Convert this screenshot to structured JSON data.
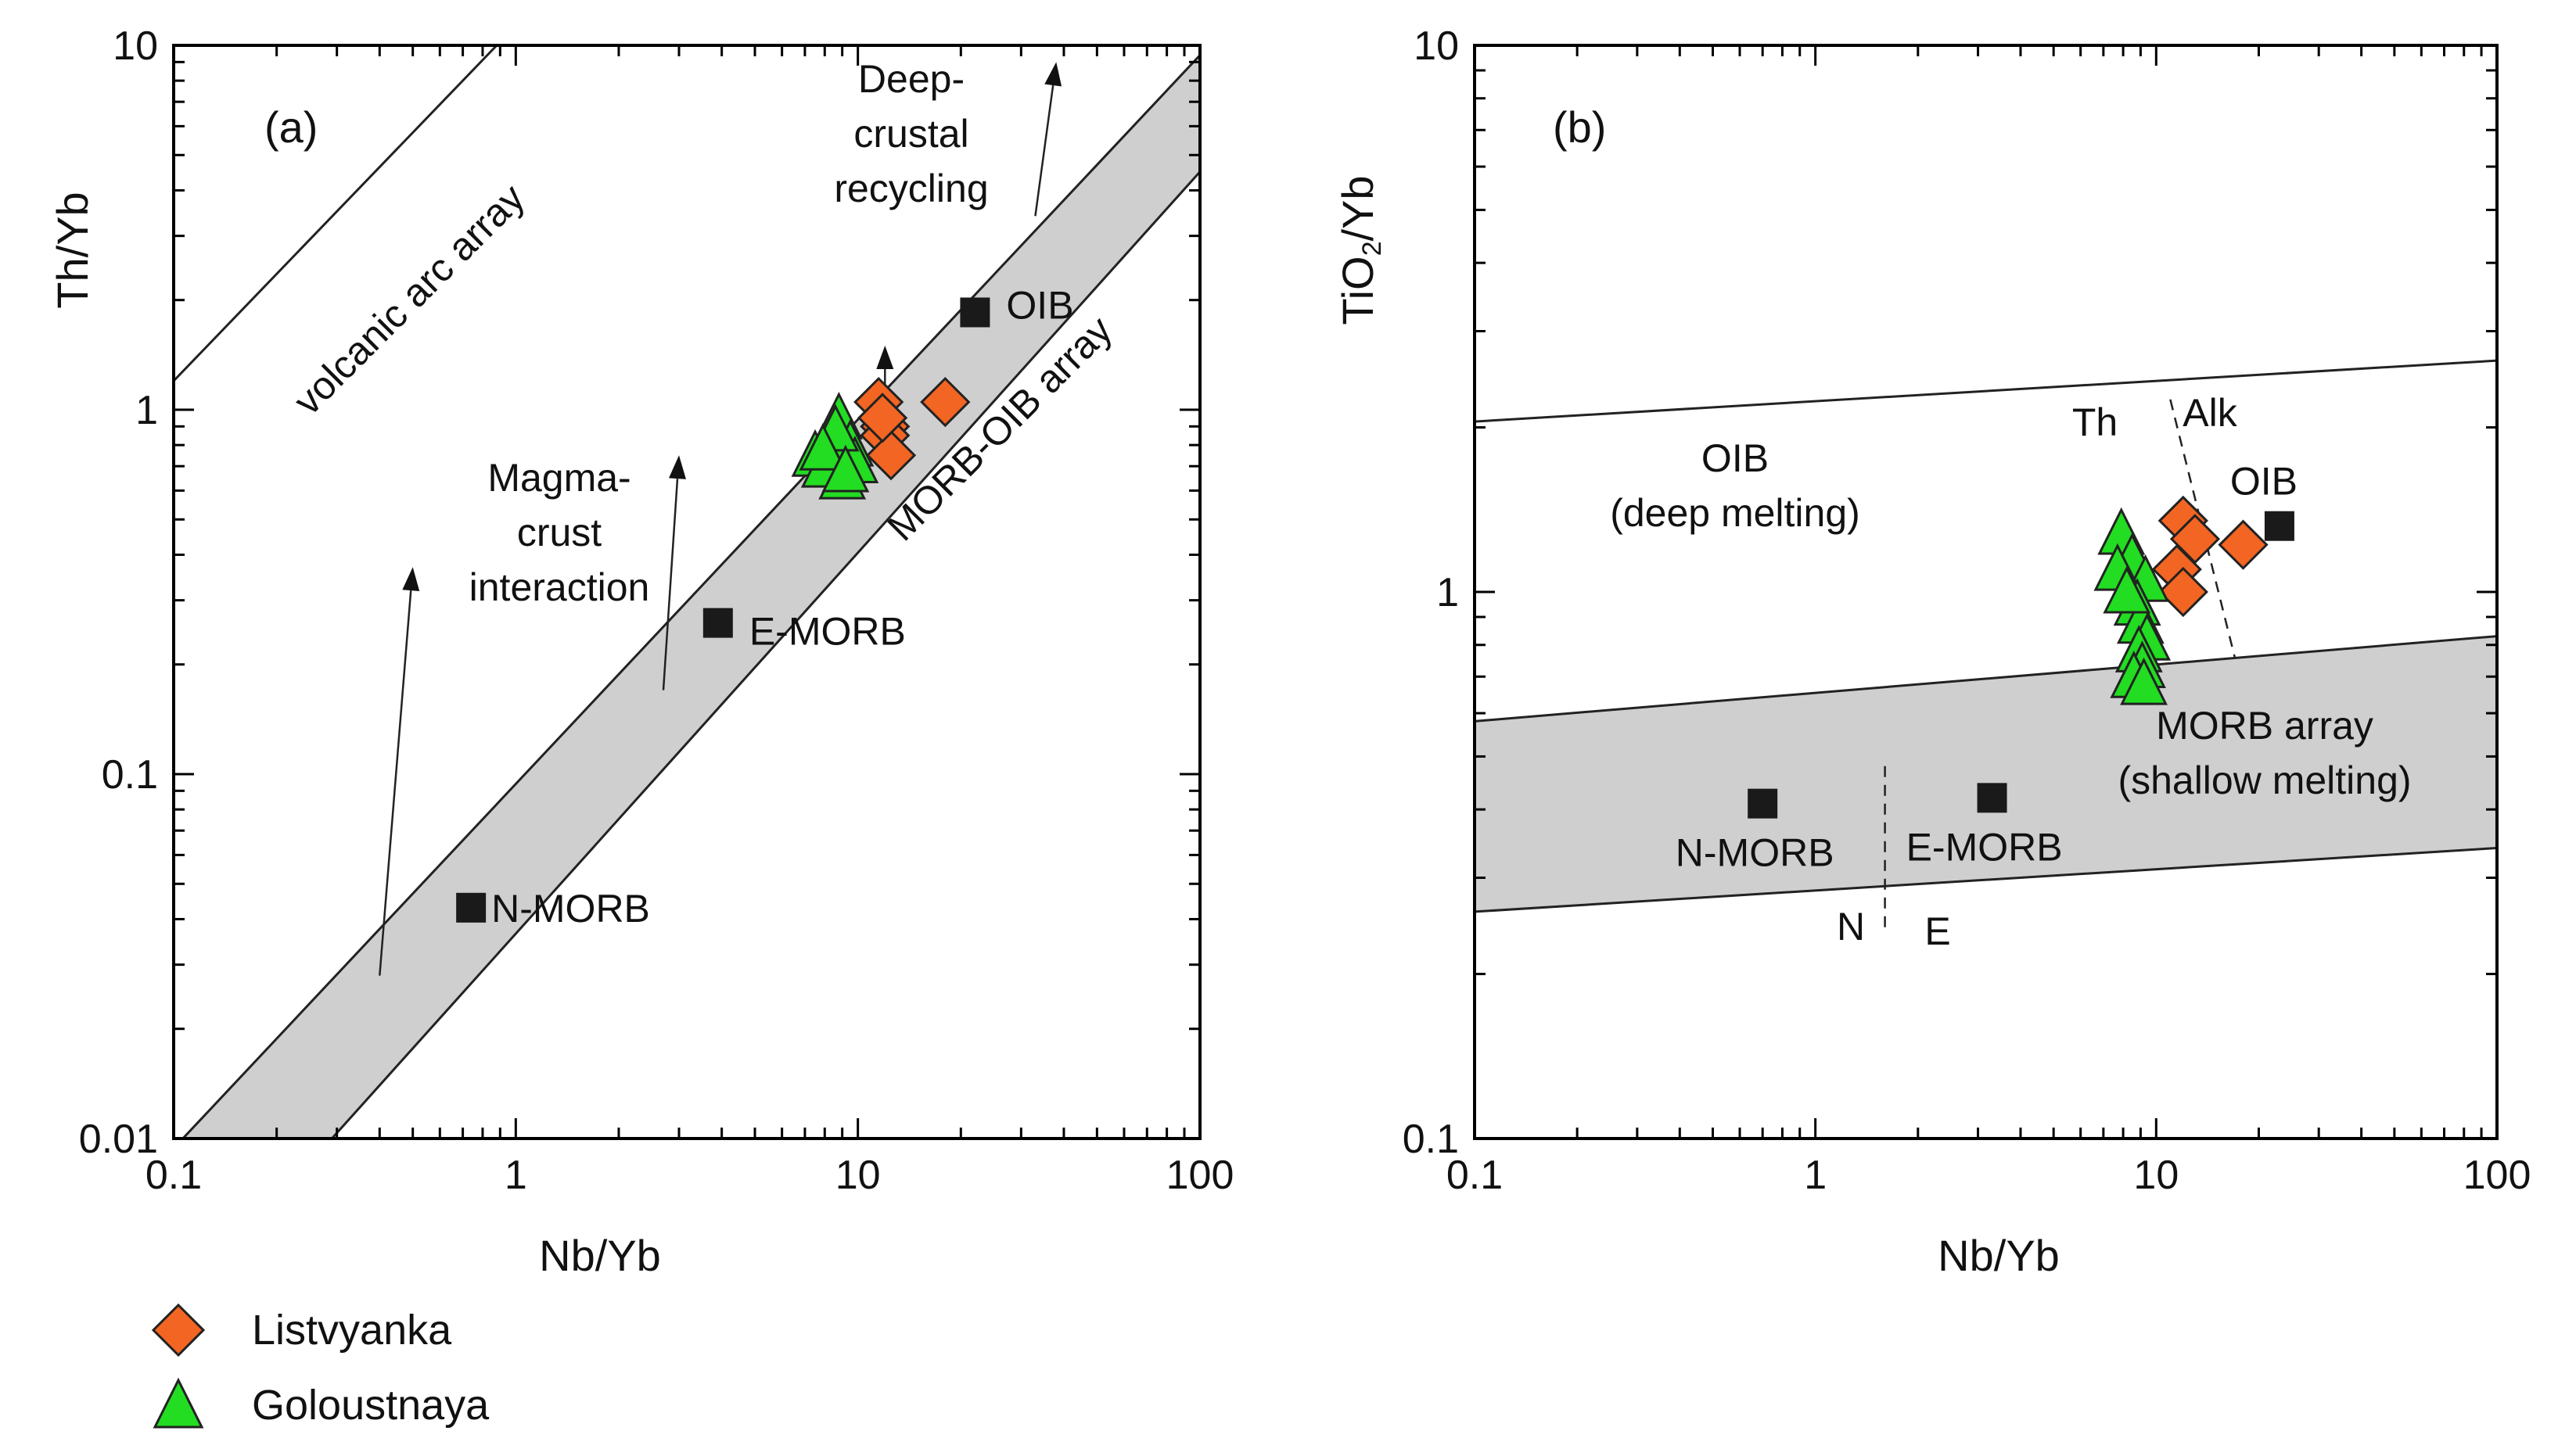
{
  "figure": {
    "legend": [
      {
        "label": "Listvyanka",
        "marker": "diamond",
        "color": "#F26522"
      },
      {
        "label": "Goloustnaya",
        "marker": "triangle",
        "color": "#22DD22"
      }
    ]
  },
  "colors": {
    "listvyanka": "#F26522",
    "goloustnaya": "#22DD22",
    "reference": "#1a1a1a",
    "array_fill": "#cfcfcf",
    "axis": "#000000"
  },
  "chart_data": [
    {
      "type": "scatter",
      "panel_label": "(a)",
      "xlabel": "Nb/Yb",
      "ylabel": "Th/Yb",
      "xscale": "log",
      "yscale": "log",
      "xlim": [
        0.1,
        100
      ],
      "ylim": [
        0.01,
        10
      ],
      "xticks": [
        0.1,
        1,
        10,
        100
      ],
      "xtick_labels": [
        "0.1",
        "1",
        "10",
        "100"
      ],
      "yticks": [
        0.01,
        0.1,
        1,
        10
      ],
      "ytick_labels": [
        "0.01",
        "0.1",
        "1",
        "10"
      ],
      "band": {
        "label": "MORB-OIB array",
        "upper_line": [
          [
            0.1,
            0.0094
          ],
          [
            100,
            9.4
          ]
        ],
        "lower_line": [
          [
            0.29,
            0.01
          ],
          [
            100,
            4.5
          ]
        ]
      },
      "volcanic_arc_line": {
        "label": "volcanic arc array",
        "points": [
          [
            0.1,
            1.2
          ],
          [
            0.88,
            10
          ]
        ]
      },
      "reference_points": [
        {
          "name": "N-MORB",
          "x": 0.74,
          "y": 0.043
        },
        {
          "name": "E-MORB",
          "x": 3.9,
          "y": 0.26
        },
        {
          "name": "OIB",
          "x": 22,
          "y": 1.85
        }
      ],
      "arrows": [
        {
          "label": "Magma-\ncrust\ninteraction",
          "from": [
            0.4,
            0.028
          ],
          "to": [
            0.5,
            0.37
          ]
        },
        {
          "label": "",
          "from": [
            2.7,
            0.17
          ],
          "to": [
            3.0,
            0.75
          ]
        },
        {
          "label": "",
          "from": [
            12,
            1.0
          ],
          "to": [
            12,
            1.5
          ]
        },
        {
          "label": "Deep-\ncrustal\nrecycling",
          "from": [
            33,
            3.4
          ],
          "to": [
            38,
            9.0
          ]
        }
      ],
      "series": [
        {
          "name": "Listvyanka",
          "marker": "diamond",
          "x": [
            11.5,
            12.0,
            18.0,
            12.0,
            12.5,
            11.8
          ],
          "y": [
            1.05,
            0.9,
            1.05,
            0.85,
            0.75,
            0.95
          ]
        },
        {
          "name": "Goloustnaya",
          "marker": "triangle",
          "x": [
            8.8,
            8.5,
            9.5,
            7.5,
            9.0,
            8.0,
            9.8,
            8.6,
            7.9,
            9.2
          ],
          "y": [
            0.95,
            0.85,
            0.8,
            0.75,
            0.65,
            0.7,
            0.72,
            0.88,
            0.78,
            0.68
          ]
        }
      ],
      "annotations": [
        "Magma-",
        "crust",
        "interaction",
        "Deep-",
        "crustal",
        "recycling",
        "volcanic arc array",
        "MORB-OIB array"
      ]
    },
    {
      "type": "scatter",
      "panel_label": "(b)",
      "xlabel": "Nb/Yb",
      "ylabel": "TiO2/Yb",
      "ylabel_main": "TiO",
      "ylabel_sub": "2",
      "ylabel_tail": "/Yb",
      "xscale": "log",
      "yscale": "log",
      "xlim": [
        0.1,
        100
      ],
      "ylim": [
        0.1,
        10
      ],
      "xticks": [
        0.1,
        1,
        10,
        100
      ],
      "xtick_labels": [
        "0.1",
        "1",
        "10",
        "100"
      ],
      "yticks": [
        0.1,
        1,
        10
      ],
      "ytick_labels": [
        "0.1",
        "1",
        "10"
      ],
      "band": {
        "label_line1": "MORB array",
        "label_line2": "(shallow melting)",
        "upper_line": [
          [
            0.1,
            0.58
          ],
          [
            100,
            0.83
          ]
        ],
        "lower_line": [
          [
            0.1,
            0.26
          ],
          [
            100,
            0.34
          ]
        ]
      },
      "oib_line": {
        "points": [
          [
            0.1,
            2.05
          ],
          [
            100,
            2.65
          ]
        ]
      },
      "oib_region_label_line1": "OIB",
      "oib_region_label_line2": "(deep melting)",
      "th_alk_divider": {
        "points": [
          [
            11,
            2.25
          ],
          [
            17,
            0.76
          ]
        ],
        "left_label": "Th",
        "right_label": "Alk"
      },
      "n_e_divider": {
        "points": [
          [
            1.6,
            0.48
          ],
          [
            1.6,
            0.24
          ]
        ],
        "left_label": "N",
        "right_label": "E"
      },
      "reference_points": [
        {
          "name": "N-MORB",
          "x": 0.7,
          "y": 0.41
        },
        {
          "name": "E-MORB",
          "x": 3.3,
          "y": 0.42
        },
        {
          "name": "OIB",
          "x": 23,
          "y": 1.32
        }
      ],
      "series": [
        {
          "name": "Listvyanka",
          "marker": "diamond",
          "x": [
            12.0,
            13.0,
            18.0,
            11.5,
            12.0
          ],
          "y": [
            1.35,
            1.25,
            1.22,
            1.1,
            1.0
          ]
        },
        {
          "name": "Goloustnaya",
          "marker": "triangle",
          "x": [
            7.9,
            8.5,
            9.3,
            7.7,
            8.8,
            9.0,
            9.4,
            8.2,
            8.9,
            9.1,
            8.6,
            9.2
          ],
          "y": [
            1.28,
            1.15,
            1.05,
            1.1,
            0.95,
            0.88,
            0.82,
            1.0,
            0.78,
            0.73,
            0.7,
            0.68
          ]
        }
      ]
    }
  ]
}
